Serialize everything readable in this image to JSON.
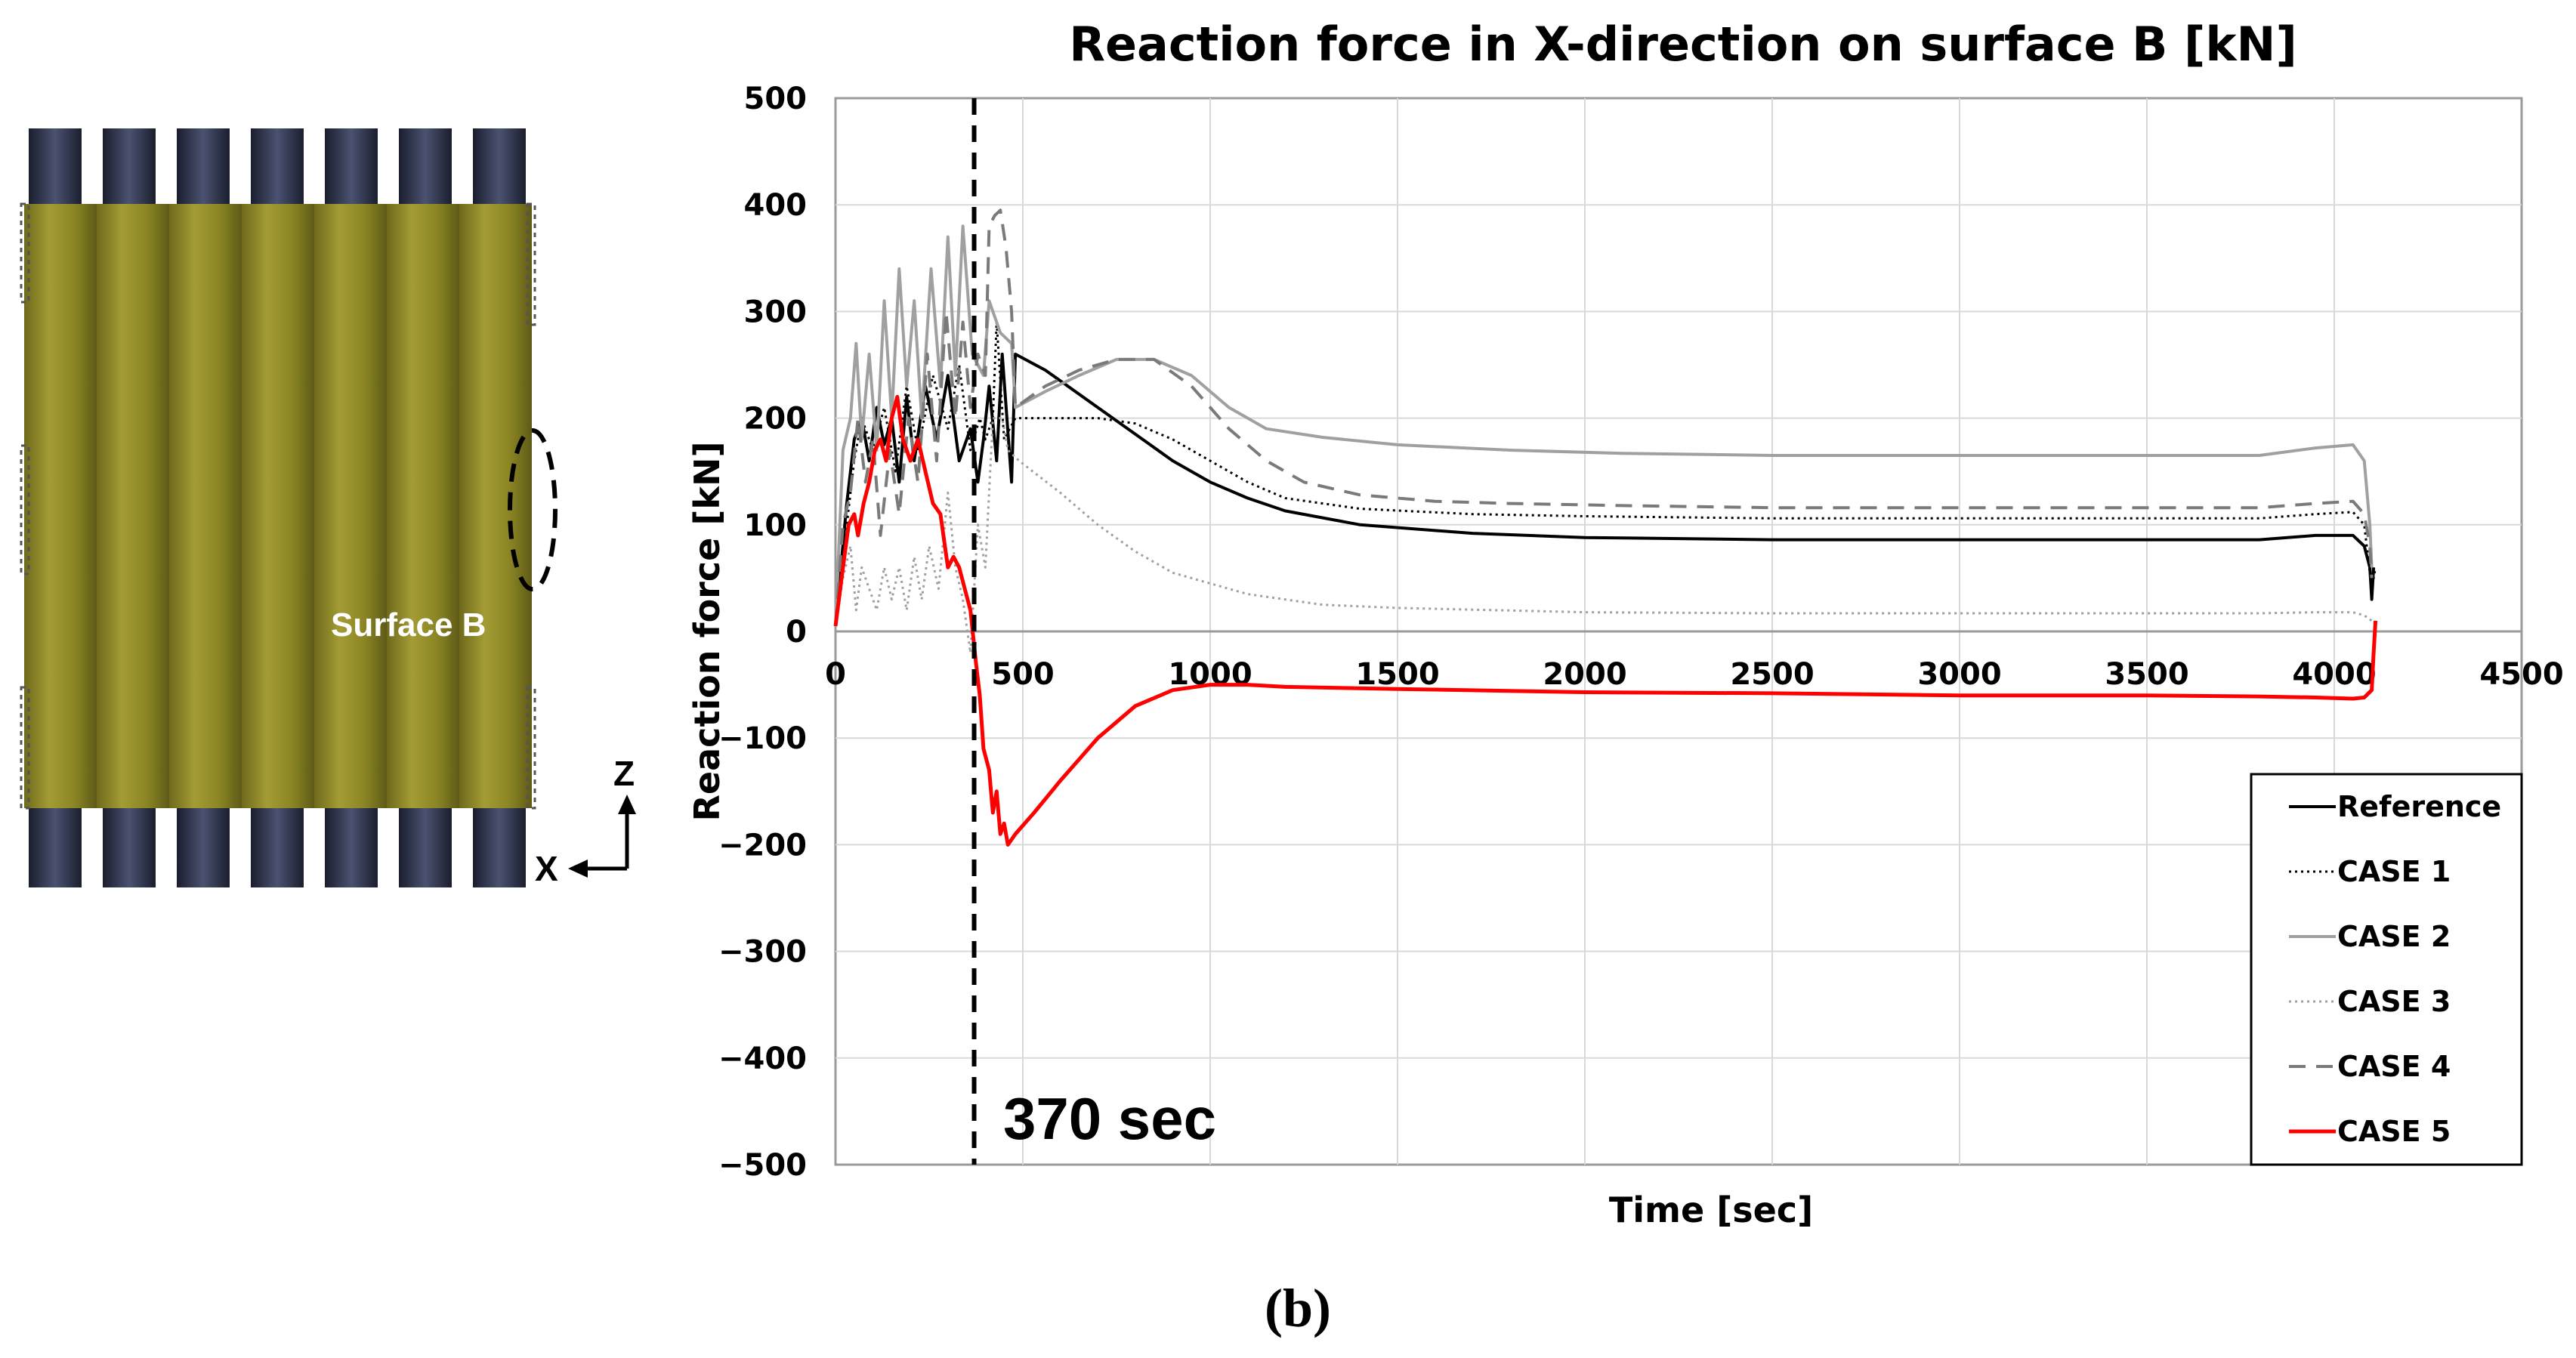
{
  "diagram": {
    "surface_label": "Surface B",
    "axis_x_label": "X",
    "axis_z_label": "Z",
    "colors": {
      "plate": "#8a8424",
      "post": "#2a2f44"
    }
  },
  "caption": "(b)",
  "annotation": {
    "text": "370 sec",
    "x": 370
  },
  "chart_data": {
    "type": "line",
    "title": "Reaction force in X-direction on surface B [kN]",
    "xlabel": "Time [sec]",
    "ylabel": "Reaction force [kN]",
    "xlim": [
      0,
      4500
    ],
    "ylim": [
      -500,
      500
    ],
    "x_ticks": [
      0,
      500,
      1000,
      1500,
      2000,
      2500,
      3000,
      3500,
      4000,
      4500
    ],
    "y_ticks": [
      500,
      400,
      300,
      200,
      100,
      0,
      -100,
      -200,
      -300,
      -400,
      -500
    ],
    "x_tick_labels": [
      "0",
      "500",
      "1000",
      "1500",
      "2000",
      "2500",
      "3000",
      "3500",
      "4000",
      "4500"
    ],
    "y_tick_labels": [
      "500",
      "400",
      "300",
      "200",
      "100",
      "0",
      "−100",
      "−200",
      "−300",
      "−400",
      "−500"
    ],
    "grid": true,
    "legend_position": "bottom-right",
    "series": [
      {
        "name": "Reference",
        "color": "#000000",
        "dash": "solid",
        "width": 4,
        "points": [
          [
            0,
            5
          ],
          [
            30,
            120
          ],
          [
            50,
            180
          ],
          [
            70,
            200
          ],
          [
            90,
            160
          ],
          [
            110,
            210
          ],
          [
            130,
            175
          ],
          [
            150,
            200
          ],
          [
            170,
            140
          ],
          [
            190,
            220
          ],
          [
            210,
            160
          ],
          [
            240,
            230
          ],
          [
            270,
            180
          ],
          [
            300,
            240
          ],
          [
            330,
            160
          ],
          [
            360,
            190
          ],
          [
            380,
            140
          ],
          [
            395,
            180
          ],
          [
            410,
            230
          ],
          [
            430,
            160
          ],
          [
            445,
            260
          ],
          [
            470,
            140
          ],
          [
            480,
            260
          ],
          [
            560,
            245
          ],
          [
            700,
            210
          ],
          [
            800,
            185
          ],
          [
            900,
            160
          ],
          [
            1000,
            140
          ],
          [
            1100,
            125
          ],
          [
            1200,
            113
          ],
          [
            1400,
            100
          ],
          [
            1700,
            92
          ],
          [
            2000,
            88
          ],
          [
            2500,
            86
          ],
          [
            3000,
            86
          ],
          [
            3500,
            86
          ],
          [
            3800,
            86
          ],
          [
            3950,
            90
          ],
          [
            4050,
            90
          ],
          [
            4080,
            80
          ],
          [
            4095,
            60
          ],
          [
            4100,
            30
          ],
          [
            4105,
            60
          ]
        ]
      },
      {
        "name": "CASE 1",
        "color": "#000000",
        "dash": "3,5",
        "width": 3,
        "points": [
          [
            0,
            5
          ],
          [
            30,
            100
          ],
          [
            50,
            160
          ],
          [
            70,
            200
          ],
          [
            100,
            170
          ],
          [
            130,
            210
          ],
          [
            160,
            150
          ],
          [
            190,
            230
          ],
          [
            220,
            170
          ],
          [
            260,
            240
          ],
          [
            300,
            190
          ],
          [
            330,
            250
          ],
          [
            360,
            170
          ],
          [
            385,
            200
          ],
          [
            400,
            180
          ],
          [
            420,
            200
          ],
          [
            430,
            290
          ],
          [
            450,
            180
          ],
          [
            480,
            200
          ],
          [
            600,
            200
          ],
          [
            700,
            200
          ],
          [
            800,
            195
          ],
          [
            900,
            180
          ],
          [
            1000,
            160
          ],
          [
            1100,
            140
          ],
          [
            1200,
            125
          ],
          [
            1400,
            115
          ],
          [
            1700,
            110
          ],
          [
            2000,
            108
          ],
          [
            2500,
            106
          ],
          [
            3000,
            106
          ],
          [
            3500,
            106
          ],
          [
            3800,
            106
          ],
          [
            3950,
            110
          ],
          [
            4050,
            112
          ],
          [
            4080,
            100
          ],
          [
            4100,
            40
          ],
          [
            4110,
            60
          ]
        ]
      },
      {
        "name": "CASE 2",
        "color": "#a0a0a0",
        "dash": "solid",
        "width": 4,
        "points": [
          [
            0,
            5
          ],
          [
            20,
            170
          ],
          [
            40,
            200
          ],
          [
            55,
            270
          ],
          [
            70,
            180
          ],
          [
            90,
            260
          ],
          [
            110,
            170
          ],
          [
            130,
            310
          ],
          [
            150,
            200
          ],
          [
            170,
            340
          ],
          [
            190,
            230
          ],
          [
            210,
            310
          ],
          [
            230,
            200
          ],
          [
            255,
            340
          ],
          [
            280,
            230
          ],
          [
            300,
            370
          ],
          [
            320,
            240
          ],
          [
            340,
            380
          ],
          [
            365,
            260
          ],
          [
            380,
            250
          ],
          [
            395,
            240
          ],
          [
            410,
            310
          ],
          [
            440,
            280
          ],
          [
            470,
            270
          ],
          [
            480,
            210
          ],
          [
            560,
            225
          ],
          [
            650,
            240
          ],
          [
            750,
            255
          ],
          [
            850,
            255
          ],
          [
            950,
            240
          ],
          [
            1050,
            210
          ],
          [
            1150,
            190
          ],
          [
            1300,
            182
          ],
          [
            1500,
            175
          ],
          [
            1800,
            170
          ],
          [
            2100,
            167
          ],
          [
            2500,
            165
          ],
          [
            3000,
            165
          ],
          [
            3500,
            165
          ],
          [
            3800,
            165
          ],
          [
            3950,
            172
          ],
          [
            4050,
            175
          ],
          [
            4080,
            160
          ],
          [
            4095,
            100
          ],
          [
            4100,
            60
          ]
        ]
      },
      {
        "name": "CASE 3",
        "color": "#a0a0a0",
        "dash": "3,5",
        "width": 3,
        "points": [
          [
            0,
            5
          ],
          [
            20,
            50
          ],
          [
            40,
            80
          ],
          [
            55,
            20
          ],
          [
            70,
            60
          ],
          [
            90,
            40
          ],
          [
            110,
            20
          ],
          [
            130,
            60
          ],
          [
            150,
            30
          ],
          [
            170,
            60
          ],
          [
            190,
            20
          ],
          [
            210,
            70
          ],
          [
            230,
            30
          ],
          [
            250,
            80
          ],
          [
            275,
            40
          ],
          [
            300,
            130
          ],
          [
            320,
            60
          ],
          [
            340,
            30
          ],
          [
            360,
            -20
          ],
          [
            380,
            100
          ],
          [
            400,
            60
          ],
          [
            420,
            200
          ],
          [
            445,
            200
          ],
          [
            460,
            170
          ],
          [
            490,
            160
          ],
          [
            600,
            130
          ],
          [
            700,
            100
          ],
          [
            800,
            75
          ],
          [
            900,
            55
          ],
          [
            1000,
            45
          ],
          [
            1100,
            35
          ],
          [
            1300,
            25
          ],
          [
            1500,
            22
          ],
          [
            2000,
            18
          ],
          [
            2500,
            17
          ],
          [
            3000,
            17
          ],
          [
            3500,
            17
          ],
          [
            3800,
            17
          ],
          [
            3950,
            18
          ],
          [
            4050,
            18
          ],
          [
            4080,
            15
          ],
          [
            4100,
            10
          ]
        ]
      },
      {
        "name": "CASE 4",
        "color": "#7a7a7a",
        "dash": "22,14",
        "width": 4,
        "points": [
          [
            0,
            5
          ],
          [
            20,
            100
          ],
          [
            40,
            130
          ],
          [
            60,
            200
          ],
          [
            80,
            140
          ],
          [
            100,
            180
          ],
          [
            120,
            90
          ],
          [
            145,
            170
          ],
          [
            170,
            110
          ],
          [
            195,
            200
          ],
          [
            220,
            140
          ],
          [
            245,
            260
          ],
          [
            270,
            160
          ],
          [
            295,
            300
          ],
          [
            320,
            200
          ],
          [
            340,
            290
          ],
          [
            360,
            210
          ],
          [
            380,
            260
          ],
          [
            400,
            240
          ],
          [
            410,
            380
          ],
          [
            425,
            390
          ],
          [
            440,
            395
          ],
          [
            455,
            360
          ],
          [
            470,
            300
          ],
          [
            480,
            210
          ],
          [
            560,
            230
          ],
          [
            650,
            245
          ],
          [
            750,
            255
          ],
          [
            850,
            255
          ],
          [
            950,
            230
          ],
          [
            1050,
            190
          ],
          [
            1150,
            160
          ],
          [
            1250,
            140
          ],
          [
            1400,
            128
          ],
          [
            1600,
            122
          ],
          [
            1800,
            120
          ],
          [
            2100,
            118
          ],
          [
            2500,
            116
          ],
          [
            3000,
            116
          ],
          [
            3500,
            116
          ],
          [
            3800,
            116
          ],
          [
            3950,
            120
          ],
          [
            4050,
            122
          ],
          [
            4080,
            110
          ],
          [
            4095,
            80
          ],
          [
            4100,
            50
          ]
        ]
      },
      {
        "name": "CASE 5",
        "color": "#ff0000",
        "dash": "solid",
        "width": 5,
        "points": [
          [
            0,
            5
          ],
          [
            20,
            60
          ],
          [
            35,
            100
          ],
          [
            50,
            110
          ],
          [
            60,
            90
          ],
          [
            75,
            120
          ],
          [
            90,
            140
          ],
          [
            105,
            170
          ],
          [
            120,
            180
          ],
          [
            135,
            160
          ],
          [
            150,
            200
          ],
          [
            165,
            220
          ],
          [
            180,
            180
          ],
          [
            200,
            160
          ],
          [
            220,
            180
          ],
          [
            240,
            150
          ],
          [
            260,
            120
          ],
          [
            280,
            110
          ],
          [
            300,
            60
          ],
          [
            315,
            70
          ],
          [
            330,
            60
          ],
          [
            345,
            40
          ],
          [
            360,
            20
          ],
          [
            375,
            -30
          ],
          [
            385,
            -60
          ],
          [
            395,
            -110
          ],
          [
            410,
            -130
          ],
          [
            420,
            -170
          ],
          [
            430,
            -150
          ],
          [
            440,
            -190
          ],
          [
            450,
            -180
          ],
          [
            460,
            -200
          ],
          [
            480,
            -190
          ],
          [
            530,
            -170
          ],
          [
            600,
            -140
          ],
          [
            700,
            -100
          ],
          [
            800,
            -70
          ],
          [
            900,
            -55
          ],
          [
            1000,
            -50
          ],
          [
            1100,
            -50
          ],
          [
            1200,
            -52
          ],
          [
            1500,
            -54
          ],
          [
            2000,
            -57
          ],
          [
            2500,
            -58
          ],
          [
            3000,
            -60
          ],
          [
            3500,
            -60
          ],
          [
            3800,
            -61
          ],
          [
            3950,
            -62
          ],
          [
            4050,
            -63
          ],
          [
            4080,
            -62
          ],
          [
            4100,
            -55
          ],
          [
            4105,
            -20
          ],
          [
            4110,
            10
          ]
        ]
      }
    ]
  }
}
